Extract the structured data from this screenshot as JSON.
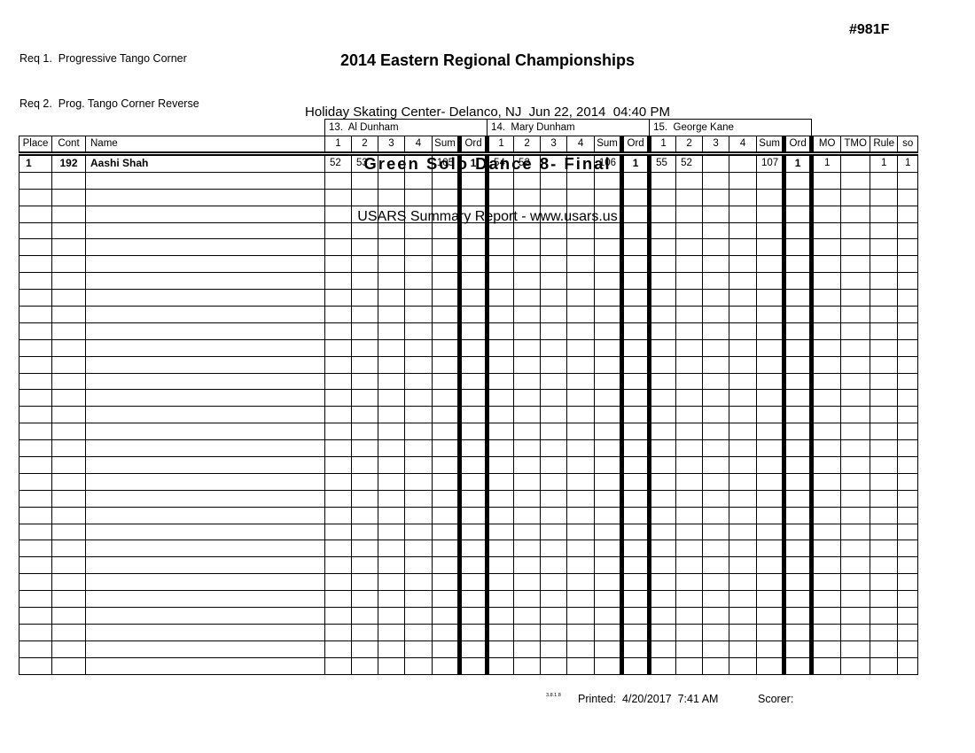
{
  "page": {
    "requirements": [
      "Req 1.  Progressive Tango Corner",
      "Req 2.  Prog. Tango Corner Reverse"
    ],
    "title": "2014 Eastern Regional Championships",
    "venue_line": "Holiday Skating Center- Delanco, NJ  Jun 22, 2014  04:40 PM",
    "event_line": "Green Solo Dance 8- Final",
    "report_line": "USARS Summary Report - www.usars.us",
    "event_number": "#981F"
  },
  "table": {
    "left_columns": [
      "Place",
      "Cont",
      "Name"
    ],
    "judges": [
      "13.  Al Dunham",
      "14.  Mary Dunham",
      "15.  George Kane"
    ],
    "judge_subcolumns": [
      "1",
      "2",
      "3",
      "4",
      "Sum",
      "Ord"
    ],
    "right_columns": [
      "MO",
      "TMO",
      "Rule",
      "so"
    ],
    "rows": [
      {
        "place": "1",
        "cont": "192",
        "name": "Aashi Shah",
        "judge_scores": [
          {
            "marks": [
              "52",
              "53",
              "",
              ""
            ],
            "sum": "105",
            "ord": "1"
          },
          {
            "marks": [
              "54",
              "52",
              "",
              ""
            ],
            "sum": "106",
            "ord": "1"
          },
          {
            "marks": [
              "55",
              "52",
              "",
              ""
            ],
            "sum": "107",
            "ord": "1"
          }
        ],
        "mo": "1",
        "tmo": "",
        "rule": "1",
        "so": "1"
      }
    ],
    "empty_row_count": 30
  },
  "footer": {
    "version": "3.8.1.8",
    "printed_label": "Printed:  4/20/2017  7:41 AM",
    "scorer_label": "Scorer:"
  },
  "colors": {
    "ink": "#000000",
    "paper": "#ffffff"
  }
}
